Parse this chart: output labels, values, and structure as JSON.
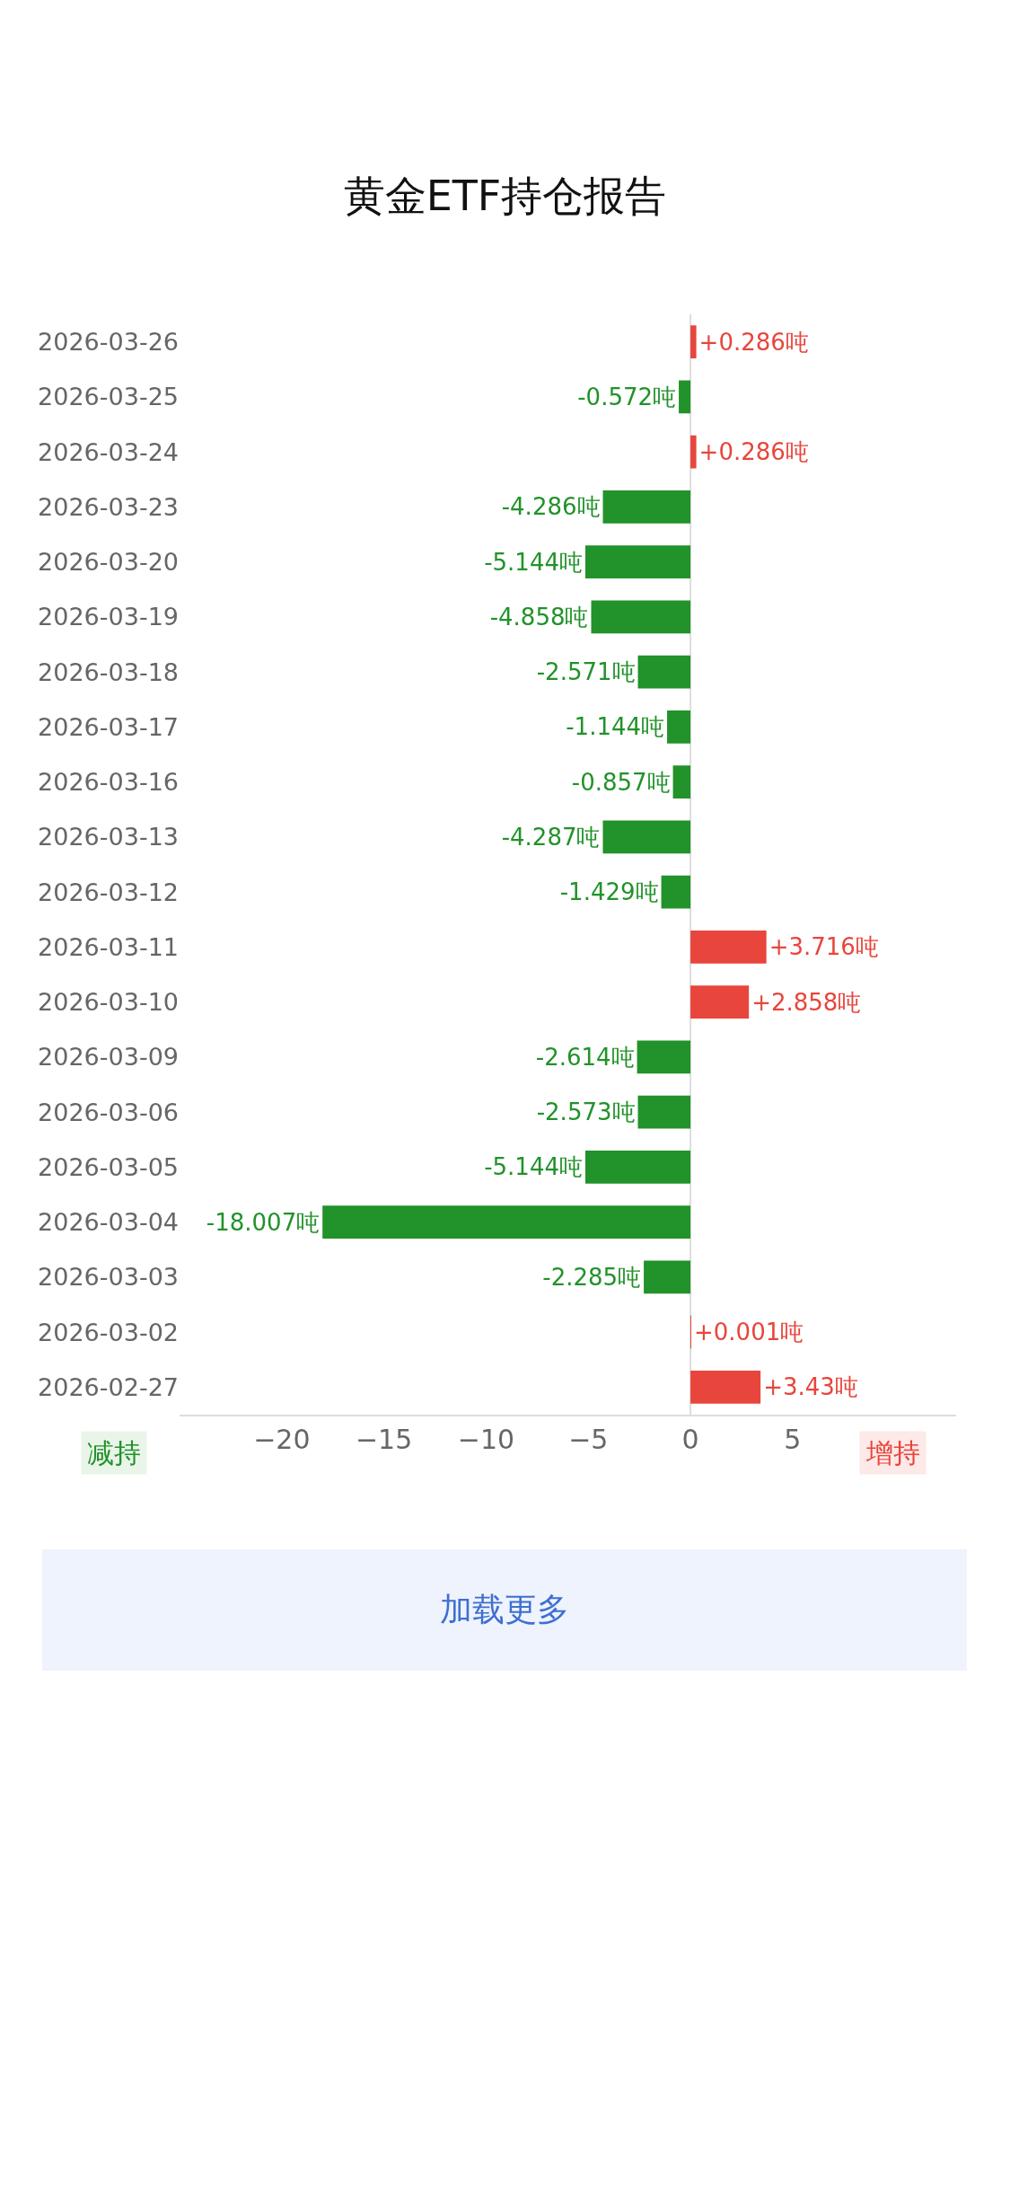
{
  "chart_data": {
    "type": "bar",
    "orientation": "horizontal",
    "title": "黄金ETF持仓报告",
    "categories": [
      "2026-03-26",
      "2026-03-25",
      "2026-03-24",
      "2026-03-23",
      "2026-03-20",
      "2026-03-19",
      "2026-03-18",
      "2026-03-17",
      "2026-03-16",
      "2026-03-13",
      "2026-03-12",
      "2026-03-11",
      "2026-03-10",
      "2026-03-09",
      "2026-03-06",
      "2026-03-05",
      "2026-03-04",
      "2026-03-03",
      "2026-03-02",
      "2026-02-27"
    ],
    "values": [
      0.286,
      -0.572,
      0.286,
      -4.286,
      -5.144,
      -4.858,
      -2.571,
      -1.144,
      -0.857,
      -4.287,
      -1.429,
      3.716,
      2.858,
      -2.614,
      -2.573,
      -5.144,
      -18.007,
      -2.285,
      0.001,
      3.43
    ],
    "value_labels": [
      "+0.286吨",
      "-0.572吨",
      "+0.286吨",
      "-4.286吨",
      "-5.144吨",
      "-4.858吨",
      "-2.571吨",
      "-1.144吨",
      "-0.857吨",
      "-4.287吨",
      "-1.429吨",
      "+3.716吨",
      "+2.858吨",
      "-2.614吨",
      "-2.573吨",
      "-5.144吨",
      "-18.007吨",
      "-2.285吨",
      "+0.001吨",
      "+3.43吨"
    ],
    "colors": [
      "#e8453c",
      "#22922a",
      "#e8453c",
      "#22922a",
      "#22922a",
      "#22922a",
      "#22922a",
      "#22922a",
      "#22922a",
      "#22922a",
      "#22922a",
      "#e8453c",
      "#e8453c",
      "#22922a",
      "#22922a",
      "#22922a",
      "#22922a",
      "#22922a",
      "#e8453c",
      "#e8453c"
    ],
    "xlim": [
      -25,
      13
    ],
    "xticks": [
      {
        "value": -20,
        "label": "−20"
      },
      {
        "value": -15,
        "label": "−15"
      },
      {
        "value": -10,
        "label": "−10"
      },
      {
        "value": -5,
        "label": "−5"
      },
      0,
      5
    ],
    "grid": false,
    "legend": false,
    "ref_lines": [
      {
        "axis": "x",
        "value": 0,
        "color": "#dddddd"
      }
    ],
    "annotations": [
      "减持",
      "增持",
      "加载更多"
    ]
  }
}
